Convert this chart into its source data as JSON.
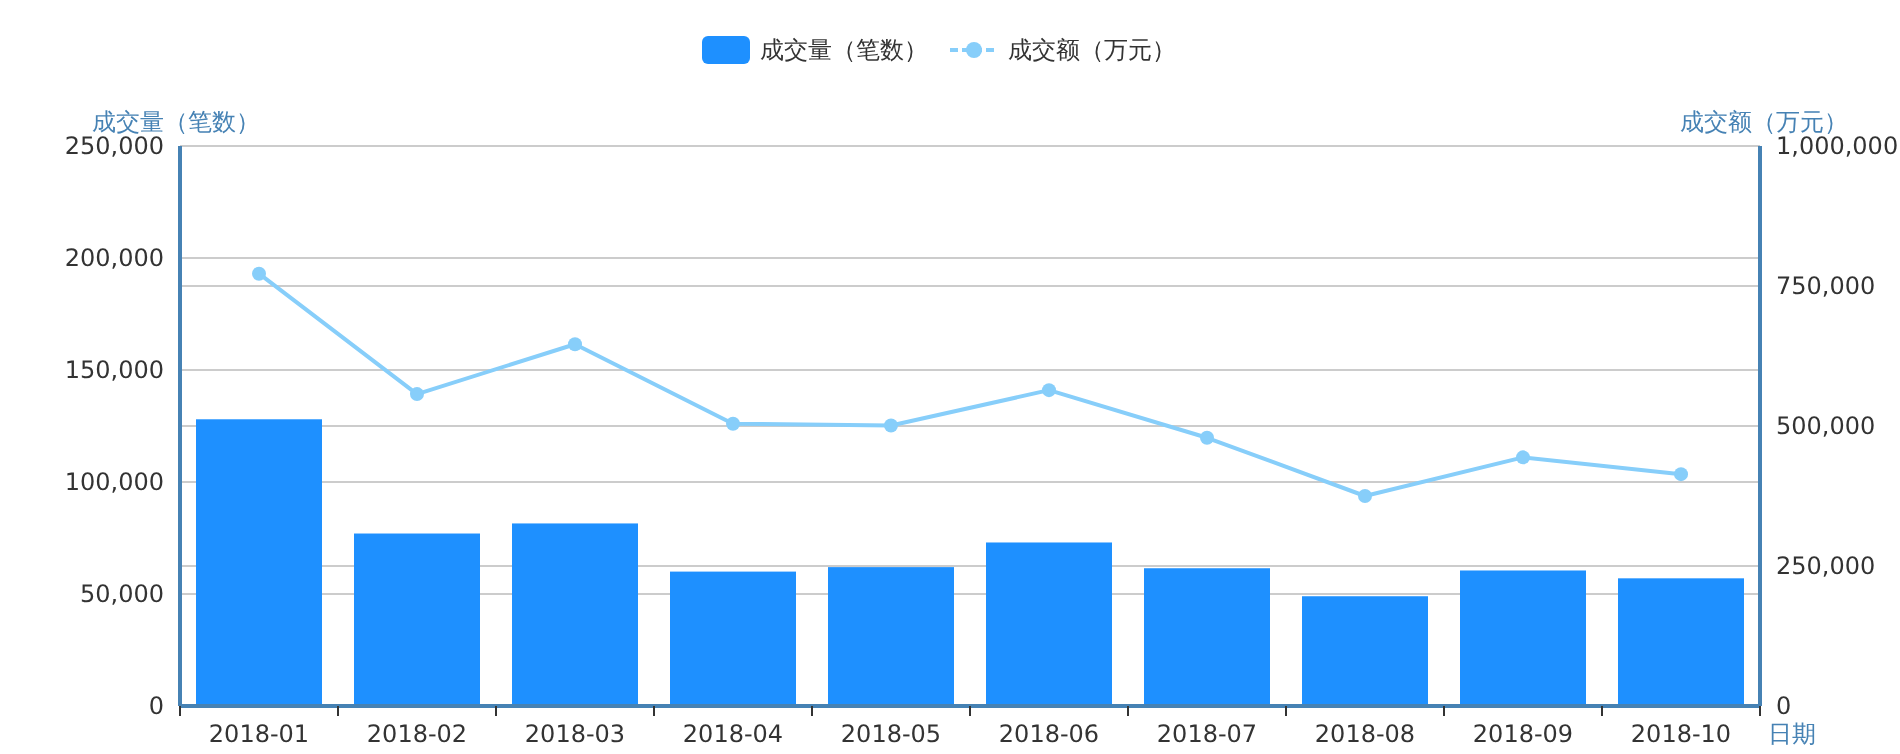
{
  "chart_data": {
    "type": "bar",
    "xlabel": "日期",
    "ylabel": "成交量（笔数）",
    "y2label": "成交额（万元）",
    "categories": [
      "2018-01",
      "2018-02",
      "2018-03",
      "2018-04",
      "2018-05",
      "2018-06",
      "2018-07",
      "2018-08",
      "2018-09",
      "2018-10"
    ],
    "series": [
      {
        "name": "成交量（笔数）",
        "color": "#1e90ff",
        "values": [
          128000,
          77000,
          81500,
          60000,
          62000,
          73000,
          61500,
          49000,
          60500,
          57000
        ]
      },
      {
        "name": "成交额（万元）",
        "type": "line",
        "axis": "y2",
        "color": "#87cefa",
        "marker": "circle",
        "values": [
          772000,
          557000,
          646000,
          504000,
          501000,
          564000,
          479000,
          375000,
          444000,
          414000
        ]
      }
    ],
    "ylim": [
      0,
      250000
    ],
    "yticks": [
      {
        "value": 0,
        "label": "0"
      },
      {
        "value": 50000,
        "label": "50,000"
      },
      {
        "value": 100000,
        "label": "100,000"
      },
      {
        "value": 150000,
        "label": "150,000"
      },
      {
        "value": 200000,
        "label": "200,000"
      },
      {
        "value": 250000,
        "label": "250,000"
      }
    ],
    "y2lim": [
      0,
      1000000
    ],
    "y2ticks": [
      {
        "value": 0,
        "label": "0"
      },
      {
        "value": 250000,
        "label": "250,000"
      },
      {
        "value": 500000,
        "label": "500,000"
      },
      {
        "value": 750000,
        "label": "750,000"
      },
      {
        "value": 1000000,
        "label": "1,000,000"
      }
    ],
    "grid": true,
    "legend": "top"
  }
}
